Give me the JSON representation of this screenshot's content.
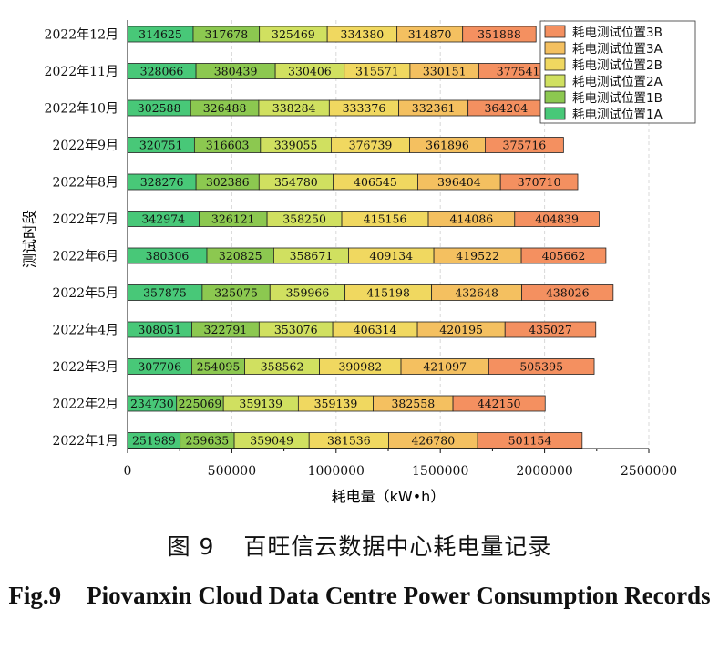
{
  "chart_data": {
    "type": "bar",
    "orientation": "horizontal",
    "stacked": true,
    "ylabel": "测试时段",
    "xlabel": "耗电量（kW•h）",
    "xlim": [
      0,
      2500000
    ],
    "xticks": [
      0,
      500000,
      1000000,
      1500000,
      2000000,
      2500000
    ],
    "xtick_labels": [
      "0",
      "500000",
      "1000000",
      "1500000",
      "2000000",
      "2500000"
    ],
    "grid": "dashed vertical",
    "legend_position": "top-right",
    "categories": [
      "2022年1月",
      "2022年2月",
      "2022年3月",
      "2022年4月",
      "2022年5月",
      "2022年6月",
      "2022年7月",
      "2022年8月",
      "2022年9月",
      "2022年10月",
      "2022年11月",
      "2022年12月"
    ],
    "series": [
      {
        "name": "耗电测试位置1A",
        "color": "#48c878",
        "values": [
          251989,
          234730,
          307706,
          308051,
          357875,
          380306,
          342974,
          328276,
          320751,
          302588,
          328066,
          314625
        ]
      },
      {
        "name": "耗电测试位置1B",
        "color": "#8cc850",
        "values": [
          259635,
          225069,
          254095,
          322791,
          325075,
          320825,
          326121,
          302386,
          316603,
          326488,
          380439,
          317678
        ]
      },
      {
        "name": "耗电测试位置2A",
        "color": "#d0e060",
        "values": [
          359049,
          359139,
          358562,
          353076,
          359966,
          358671,
          358250,
          354780,
          339055,
          338284,
          330406,
          325469
        ]
      },
      {
        "name": "耗电测试位置2B",
        "color": "#f0d860",
        "values": [
          381536,
          359139,
          390982,
          406314,
          415198,
          409134,
          415156,
          406545,
          376739,
          333376,
          315571,
          334380
        ]
      },
      {
        "name": "耗电测试位置3A",
        "color": "#f4c060",
        "values": [
          426780,
          382558,
          421097,
          420195,
          432648,
          419522,
          414086,
          396404,
          361896,
          332361,
          330151,
          314870
        ]
      },
      {
        "name": "耗电测试位置3B",
        "color": "#f49060",
        "values": [
          501154,
          442150,
          505395,
          435027,
          438026,
          405662,
          404839,
          370710,
          375716,
          364204,
          377541,
          351888
        ]
      }
    ]
  },
  "caption": {
    "cn_number": "图 9",
    "cn_title": "百旺信云数据中心耗电量记录",
    "en_number": "Fig.9",
    "en_title": "Piovanxin Cloud Data Centre Power Consumption Records"
  }
}
